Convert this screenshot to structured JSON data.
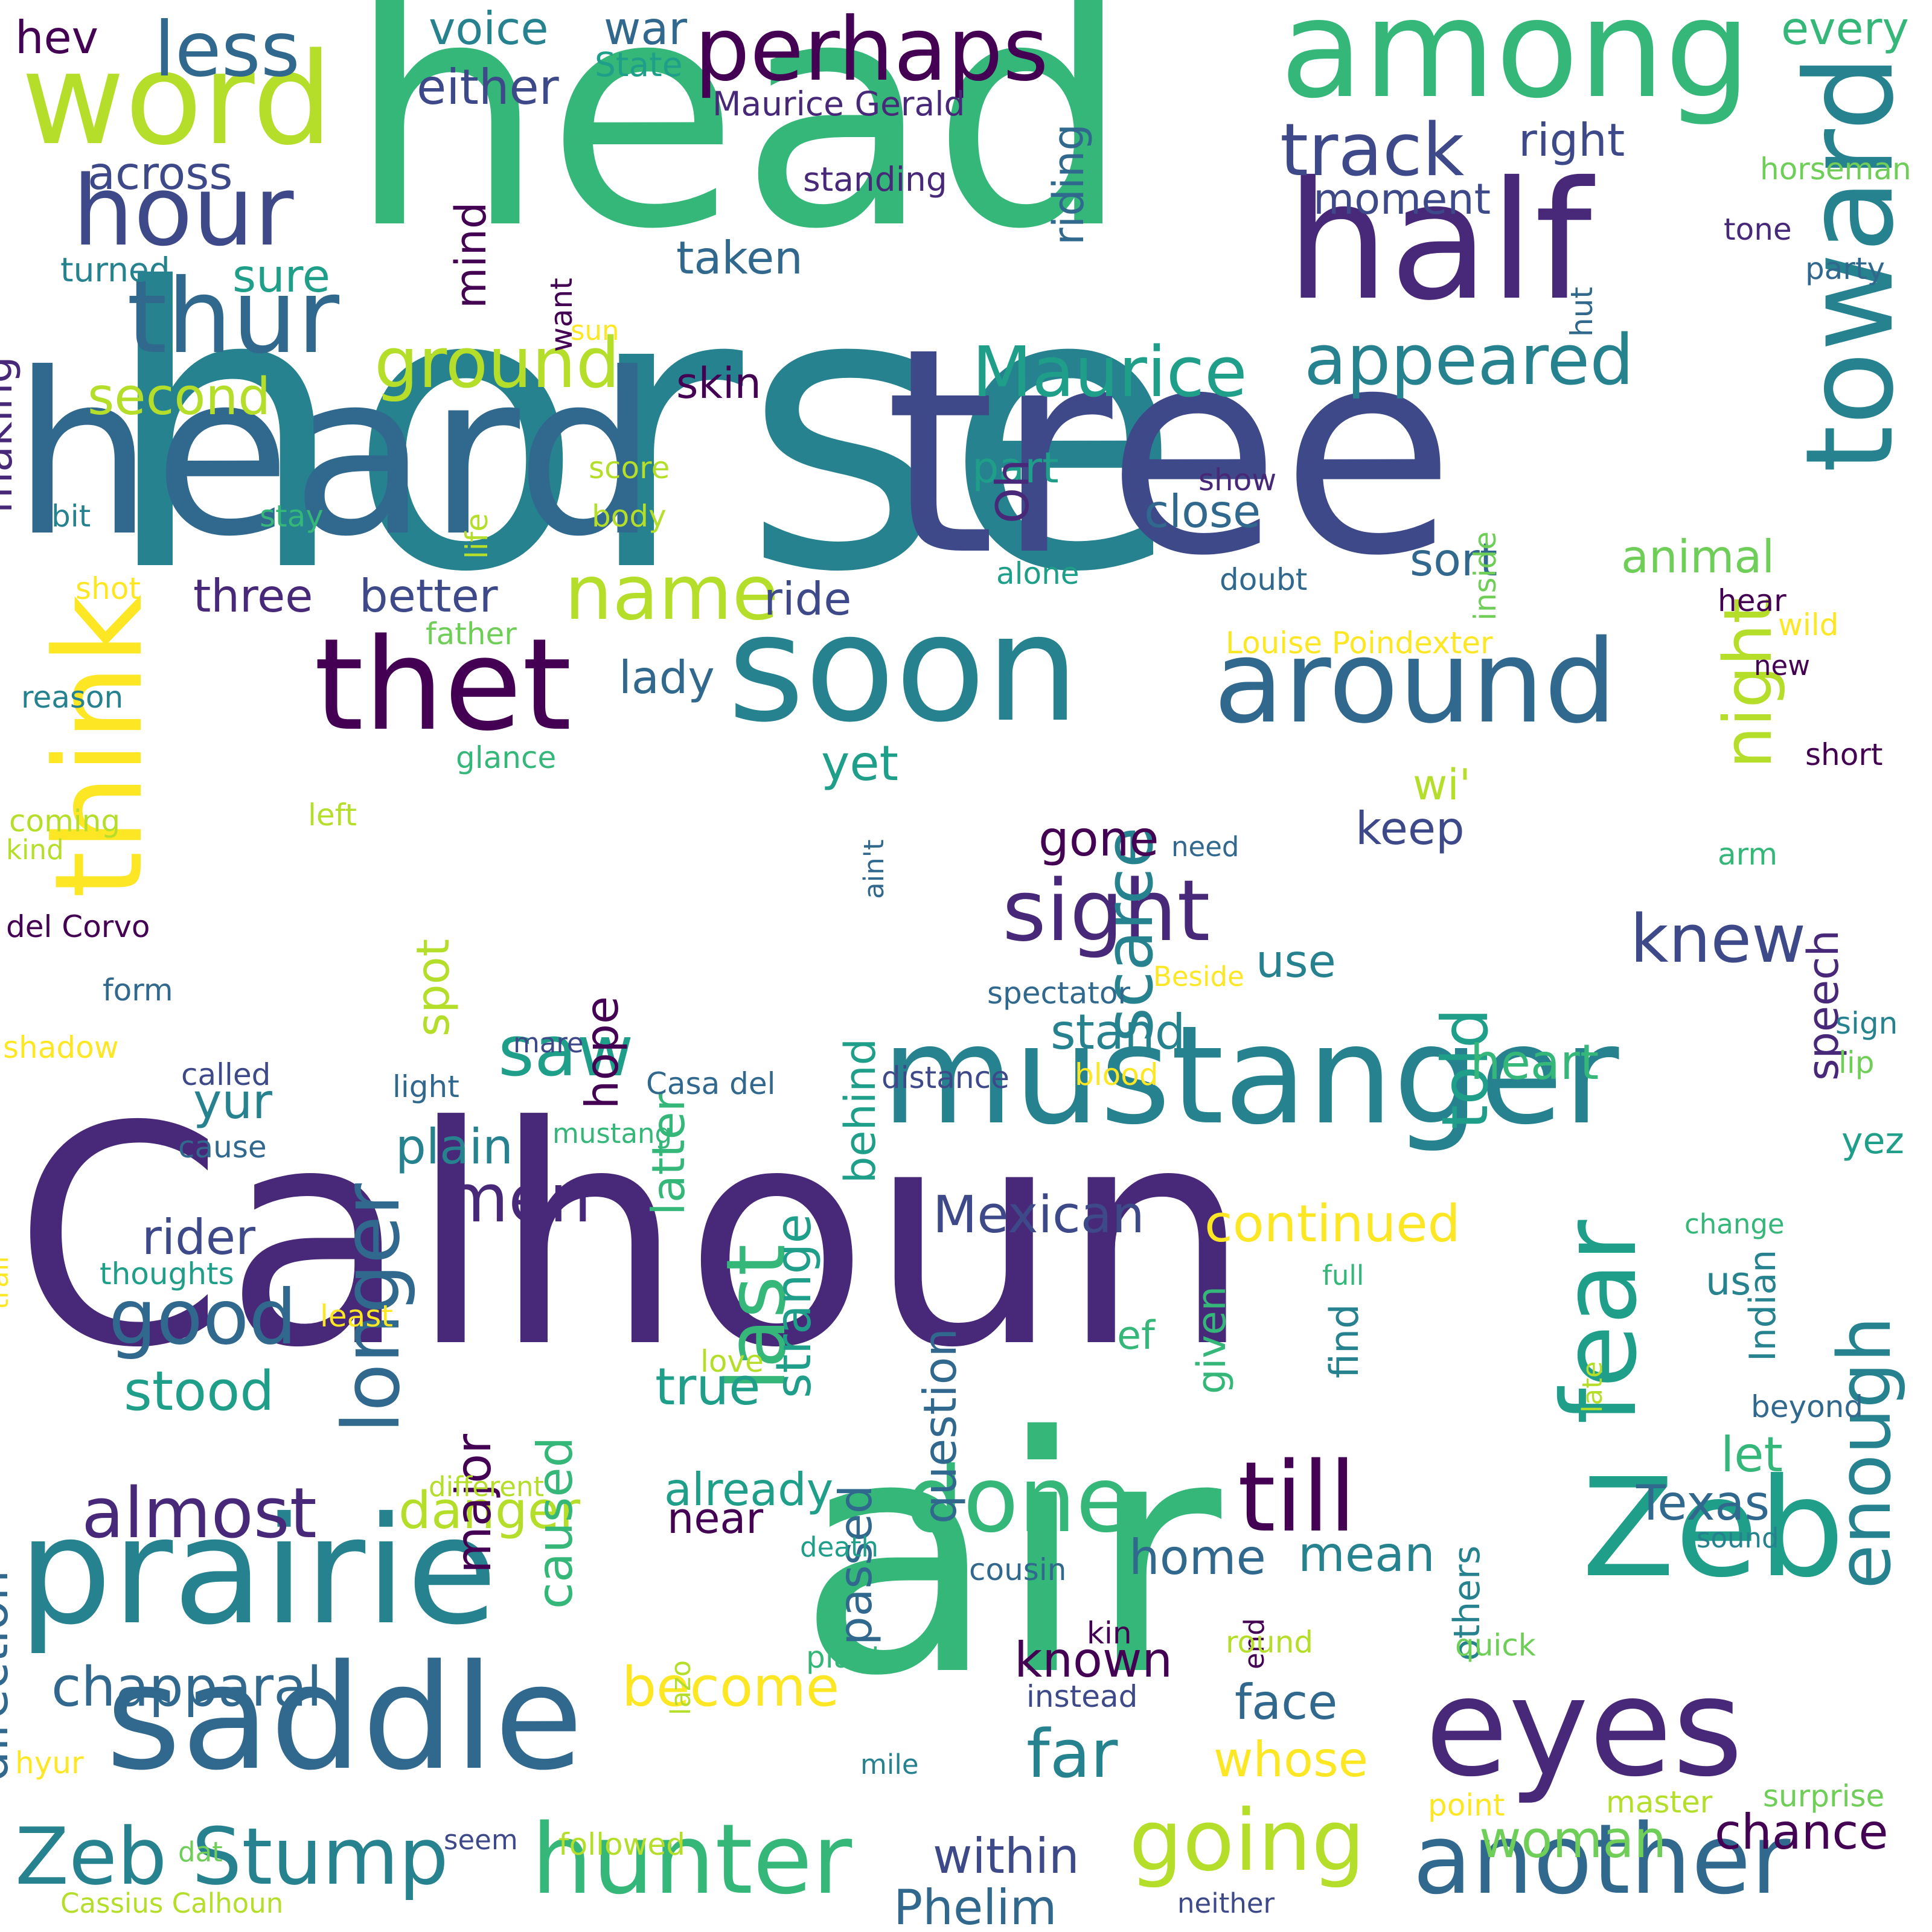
{
  "palette": [
    "#440154",
    "#482878",
    "#3e4989",
    "#31688e",
    "#26828e",
    "#1f9e89",
    "#35b779",
    "#6ece58",
    "#b5de2b",
    "#fde725"
  ],
  "words": [
    "horse",
    "Calhoun",
    "air",
    "head",
    "tree",
    "heard",
    "mustanger",
    "soon",
    "half",
    "among",
    "prairie",
    "saddle",
    "thet",
    "around",
    "toward",
    "word",
    "eyes",
    "think",
    "Zeb",
    "perhaps",
    "hour",
    "thur",
    "sight",
    "another",
    "hunter",
    "going",
    "Zeb Stump",
    "done",
    "till",
    "fear",
    "longer",
    "last",
    "Maurice",
    "appeared",
    "night",
    "enough",
    "ground",
    "less",
    "track",
    "name",
    "knew",
    "saw",
    "scarce",
    "told",
    "men",
    "good",
    "almost",
    "danger",
    "chapparal",
    "stood",
    "far",
    "become",
    "Mexican",
    "continued",
    "face",
    "whose",
    "woman",
    "chance",
    "Phelim",
    "within",
    "already",
    "true",
    "Texas",
    "let",
    "near",
    "mean",
    "home",
    "known",
    "direction",
    "caused",
    "major",
    "plain",
    "rider",
    "yur",
    "strange",
    "stand",
    "heart",
    "passed",
    "question",
    "spot",
    "keep",
    "use",
    "behind",
    "latter",
    "hope",
    "gone",
    "yet",
    "lady",
    "wi'",
    "speech",
    "ride",
    "better",
    "three",
    "sort",
    "animal",
    "close",
    "part",
    "Oh",
    "skin",
    "second",
    "sure",
    "across",
    "taken",
    "moment",
    "right",
    "riding",
    "mind",
    "either",
    "voice",
    "war",
    "hev",
    "every",
    "making",
    "turned",
    "standing",
    "State",
    "Maurice Gerald",
    "horseman",
    "tone",
    "party",
    "want",
    "hut",
    "sun",
    "life",
    "score",
    "body",
    "stay",
    "bit",
    "show",
    "inside",
    "alone",
    "doubt",
    "hear",
    "shot",
    "father",
    "Louise Poindexter",
    "wild",
    "new",
    "reason",
    "glance",
    "short",
    "coming",
    "kind",
    "left",
    "need",
    "arm",
    "ain't",
    "del Corvo",
    "form",
    "spectator",
    "Beside",
    "sign",
    "shadow",
    "mare",
    "lip",
    "called",
    "light",
    "Casa del",
    "distance",
    "blood",
    "mustang",
    "cause",
    "trail",
    "change",
    "yez",
    "thoughts",
    "full",
    "least",
    "ef",
    "given",
    "find",
    "us",
    "Indian",
    "others",
    "love",
    "late",
    "beyond",
    "different",
    "death",
    "sound",
    "cousin",
    "end",
    "lazo",
    "round",
    "quick",
    "kin",
    "planter",
    "instead",
    "hyur",
    "mile",
    "point",
    "master",
    "surprise",
    "dat",
    "seem",
    "followed",
    "Cassius Calhoun",
    "neither"
  ]
}
